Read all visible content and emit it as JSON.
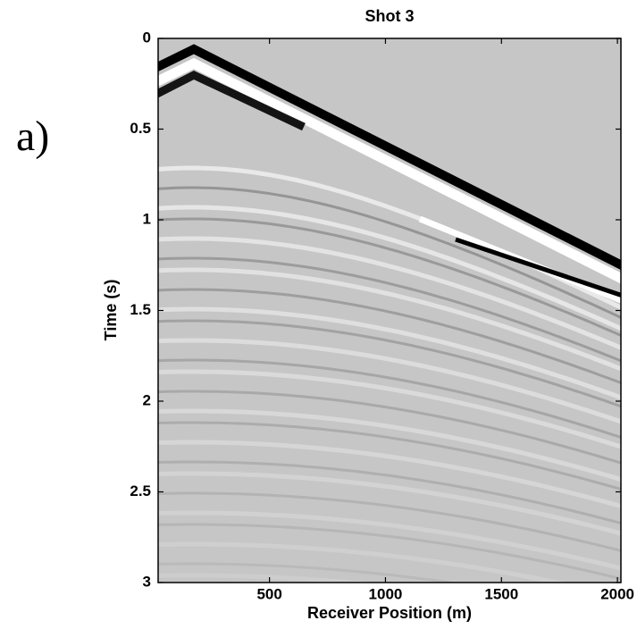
{
  "panel_label": "a)",
  "chart_data": {
    "type": "image",
    "title": "Shot 3",
    "xlabel": "Receiver Position (m)",
    "ylabel": "Time (s)",
    "xlim": [
      20,
      2015
    ],
    "ylim": [
      3,
      0
    ],
    "xticks": [
      500,
      1000,
      1500,
      2000
    ],
    "yticks": [
      0,
      0.5,
      1,
      1.5,
      2,
      2.5,
      3
    ]
  }
}
